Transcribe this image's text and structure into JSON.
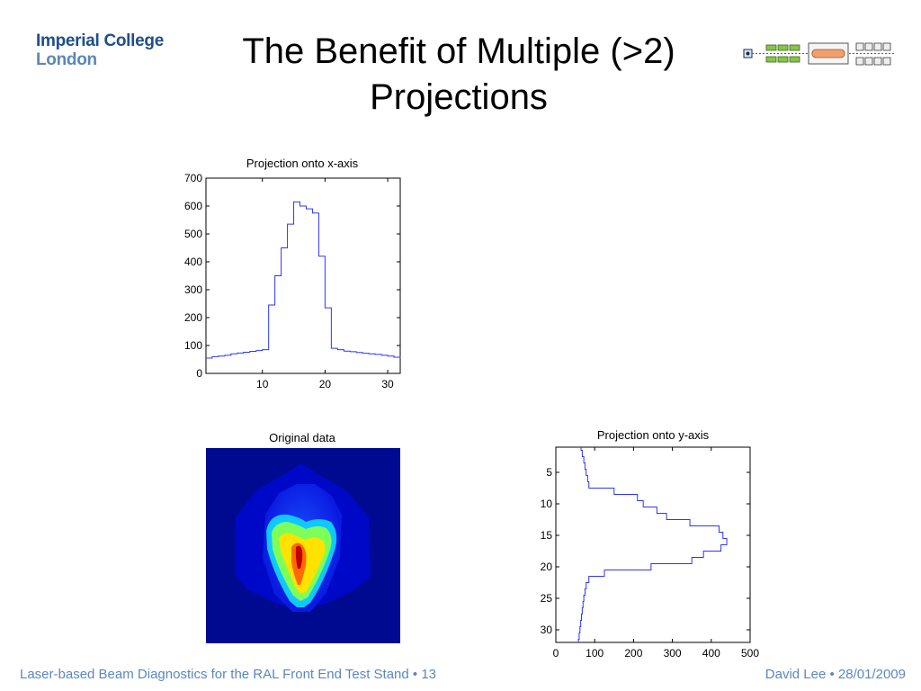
{
  "logo": {
    "line1": "Imperial College",
    "line2": "London"
  },
  "slide": {
    "title": "The Benefit of Multiple (>2) Projections"
  },
  "footer": {
    "left": "Laser-based Beam Diagnostics for the RAL Front End Test Stand • 13",
    "right": "David Lee • 28/01/2009"
  },
  "colors": {
    "trace": "#2b35ff",
    "footer": "#5b87c0",
    "logo_dark": "#1f4e8c",
    "logo_light": "#5c86b8"
  },
  "chart_data": [
    {
      "type": "line",
      "title": "Projection onto x-axis",
      "xlabel": "",
      "ylabel": "",
      "xlim": [
        1,
        32
      ],
      "ylim": [
        0,
        700
      ],
      "xticks": [
        10,
        20,
        30
      ],
      "yticks": [
        0,
        100,
        200,
        300,
        400,
        500,
        600,
        700
      ],
      "step": true,
      "x": [
        1,
        2,
        3,
        4,
        5,
        6,
        7,
        8,
        9,
        10,
        11,
        12,
        13,
        14,
        15,
        16,
        17,
        18,
        19,
        20,
        21,
        22,
        23,
        24,
        25,
        26,
        27,
        28,
        29,
        30,
        31,
        32
      ],
      "values": [
        55,
        60,
        62,
        65,
        70,
        73,
        76,
        79,
        82,
        85,
        245,
        350,
        450,
        535,
        615,
        600,
        590,
        575,
        420,
        235,
        90,
        85,
        80,
        78,
        75,
        72,
        70,
        68,
        65,
        62,
        58,
        55
      ]
    },
    {
      "type": "heatmap",
      "title": "Original data",
      "colormap": "jet",
      "description": "32x32 beam intensity map"
    },
    {
      "type": "line",
      "title": "Projection onto y-axis",
      "orientation": "horizontal",
      "xlabel": "",
      "ylabel": "",
      "xlim": [
        0,
        500
      ],
      "ylim": [
        32,
        1
      ],
      "xticks": [
        0,
        100,
        200,
        300,
        400,
        500
      ],
      "yticks": [
        5,
        10,
        15,
        20,
        25,
        30
      ],
      "step": true,
      "y": [
        1,
        2,
        3,
        4,
        5,
        6,
        7,
        8,
        9,
        10,
        11,
        12,
        13,
        14,
        15,
        16,
        17,
        18,
        19,
        20,
        21,
        22,
        23,
        24,
        25,
        26,
        27,
        28,
        29,
        30,
        31,
        32
      ],
      "values": [
        65,
        68,
        72,
        75,
        78,
        82,
        85,
        150,
        210,
        225,
        260,
        285,
        345,
        420,
        430,
        440,
        425,
        380,
        350,
        245,
        125,
        85,
        78,
        75,
        72,
        70,
        68,
        66,
        64,
        62,
        60,
        58
      ]
    }
  ]
}
